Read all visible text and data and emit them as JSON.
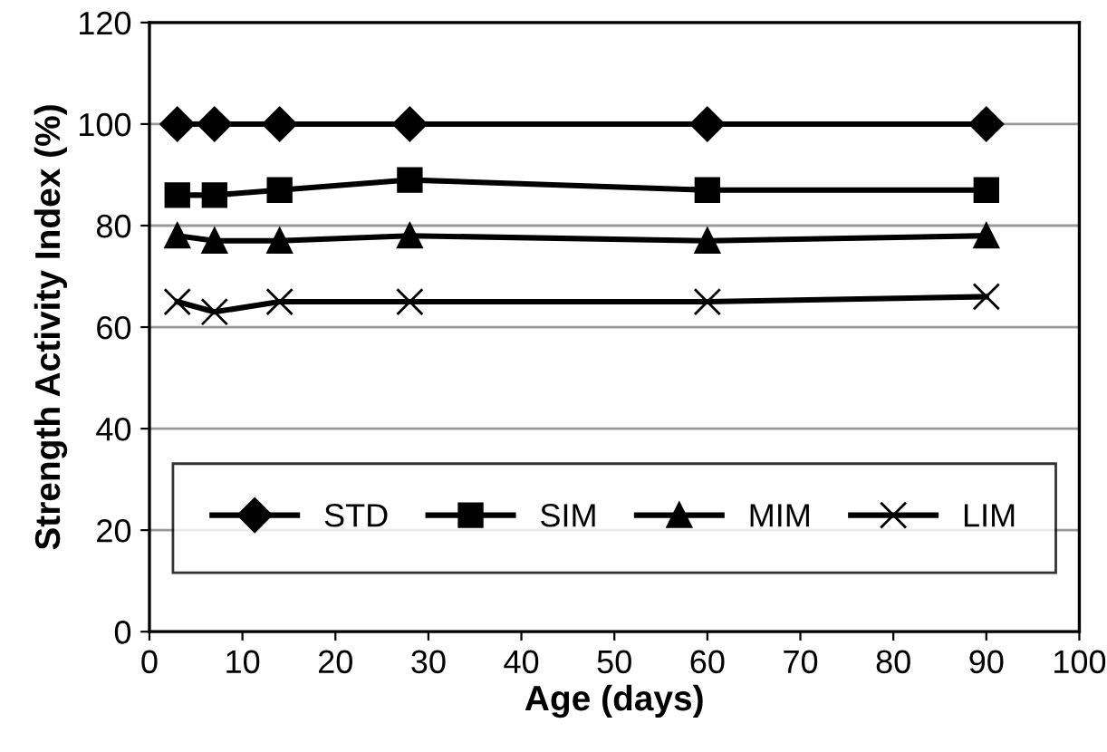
{
  "chart_data": {
    "type": "line",
    "xlabel": "Age (days)",
    "ylabel": "Strength Activity Index (%)",
    "xlim": [
      0,
      100
    ],
    "xticks": [
      0,
      10,
      20,
      30,
      40,
      50,
      60,
      70,
      80,
      90,
      100
    ],
    "ylim": [
      0,
      120
    ],
    "yticks": [
      0,
      20,
      40,
      60,
      80,
      100,
      120
    ],
    "grid": "y",
    "legend": "bottom",
    "line_style": "solid",
    "x": [
      3,
      7,
      14,
      28,
      60,
      90
    ],
    "series": [
      {
        "name": "STD",
        "color": "#000000",
        "marker": "diamond",
        "values": [
          100,
          100,
          100,
          100,
          100,
          100
        ]
      },
      {
        "name": "SIM",
        "color": "#000000",
        "marker": "square",
        "values": [
          86,
          86,
          87,
          89,
          87,
          87
        ]
      },
      {
        "name": "MIM",
        "color": "#000000",
        "marker": "triangle",
        "values": [
          78,
          77,
          77,
          78,
          77,
          78
        ]
      },
      {
        "name": "LIM",
        "color": "#000000",
        "marker": "cross",
        "values": [
          65,
          63,
          65,
          65,
          65,
          66
        ]
      }
    ]
  }
}
